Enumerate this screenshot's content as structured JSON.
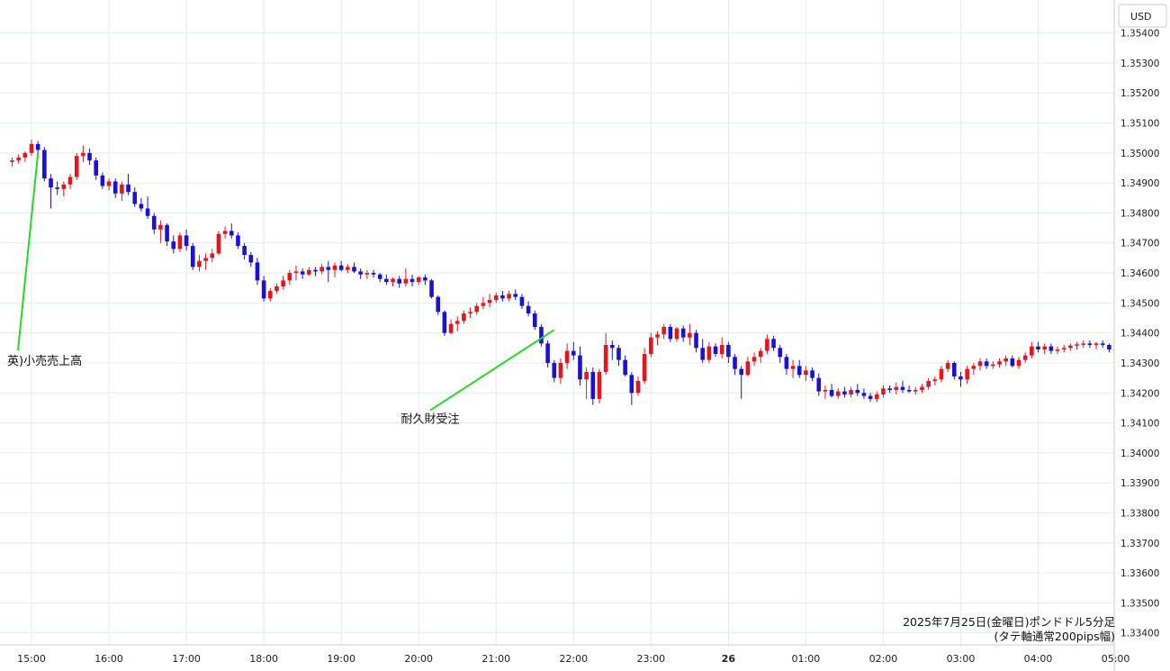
{
  "chart_data": {
    "type": "candlestick",
    "currency_label": "USD",
    "caption_line1": "2025年7月25日(金曜日)ポンドドル5分足",
    "caption_line2": "(タテ軸通常200pips幅)",
    "y_ticks": [
      "1.33400",
      "1.33500",
      "1.33600",
      "1.33700",
      "1.33800",
      "1.33900",
      "1.34000",
      "1.34100",
      "1.34200",
      "1.34300",
      "1.34400",
      "1.34500",
      "1.34600",
      "1.34700",
      "1.34800",
      "1.34900",
      "1.35000",
      "1.35100",
      "1.35200",
      "1.35300",
      "1.35400"
    ],
    "ylim": [
      1.3336,
      1.3551
    ],
    "x_ticks": [
      {
        "label": "15:00",
        "i": 3,
        "bold": false
      },
      {
        "label": "16:00",
        "i": 15,
        "bold": false
      },
      {
        "label": "17:00",
        "i": 27,
        "bold": false
      },
      {
        "label": "18:00",
        "i": 39,
        "bold": false
      },
      {
        "label": "19:00",
        "i": 51,
        "bold": false
      },
      {
        "label": "20:00",
        "i": 63,
        "bold": false
      },
      {
        "label": "21:00",
        "i": 75,
        "bold": false
      },
      {
        "label": "22:00",
        "i": 87,
        "bold": false
      },
      {
        "label": "23:00",
        "i": 99,
        "bold": false
      },
      {
        "label": "26",
        "i": 111,
        "bold": true
      },
      {
        "label": "01:00",
        "i": 123,
        "bold": false
      },
      {
        "label": "02:00",
        "i": 135,
        "bold": false
      },
      {
        "label": "03:00",
        "i": 147,
        "bold": false
      },
      {
        "label": "04:00",
        "i": 159,
        "bold": false
      },
      {
        "label": "05:00",
        "i": 171,
        "bold": false
      }
    ],
    "annotations": [
      {
        "text": "英)小売売上高",
        "i": 4,
        "price": 1.35,
        "label_price": 1.343
      },
      {
        "text": "耐久財受注",
        "i": 84,
        "price": 1.3441,
        "label_price": 1.341
      }
    ],
    "colors": {
      "up": "#e8141c",
      "down": "#1a10d8",
      "grid": "#e6ecef",
      "annotation_line": "#22dd22"
    },
    "candles": [
      [
        1.3497,
        1.34985,
        1.34955,
        1.34975
      ],
      [
        1.34975,
        1.34995,
        1.34965,
        1.34985
      ],
      [
        1.34985,
        1.35005,
        1.3497,
        1.35
      ],
      [
        1.35,
        1.35045,
        1.3499,
        1.3503
      ],
      [
        1.3503,
        1.3504,
        1.34995,
        1.3501
      ],
      [
        1.3501,
        1.3502,
        1.34905,
        1.34915
      ],
      [
        1.34915,
        1.3493,
        1.34815,
        1.34885
      ],
      [
        1.34885,
        1.34905,
        1.3486,
        1.3488
      ],
      [
        1.3488,
        1.34905,
        1.34855,
        1.34895
      ],
      [
        1.34895,
        1.3493,
        1.3488,
        1.3492
      ],
      [
        1.3492,
        1.35,
        1.3491,
        1.3499
      ],
      [
        1.3499,
        1.35025,
        1.3497,
        1.35
      ],
      [
        1.35,
        1.35015,
        1.3496,
        1.34975
      ],
      [
        1.34975,
        1.34985,
        1.3491,
        1.34925
      ],
      [
        1.34925,
        1.34935,
        1.3488,
        1.3489
      ],
      [
        1.3489,
        1.34915,
        1.34875,
        1.34905
      ],
      [
        1.34905,
        1.34915,
        1.3485,
        1.34865
      ],
      [
        1.34865,
        1.34905,
        1.3484,
        1.34895
      ],
      [
        1.34895,
        1.3493,
        1.3486,
        1.3487
      ],
      [
        1.3487,
        1.34885,
        1.3482,
        1.3483
      ],
      [
        1.3483,
        1.3485,
        1.34805,
        1.34815
      ],
      [
        1.34815,
        1.34855,
        1.3478,
        1.3479
      ],
      [
        1.3479,
        1.348,
        1.3473,
        1.34745
      ],
      [
        1.34745,
        1.34775,
        1.347,
        1.3476
      ],
      [
        1.3476,
        1.34765,
        1.3469,
        1.34705
      ],
      [
        1.34705,
        1.34725,
        1.34665,
        1.3468
      ],
      [
        1.3468,
        1.34735,
        1.3467,
        1.34725
      ],
      [
        1.34725,
        1.34745,
        1.34675,
        1.3469
      ],
      [
        1.3469,
        1.347,
        1.3461,
        1.3462
      ],
      [
        1.3462,
        1.3466,
        1.34605,
        1.3464
      ],
      [
        1.3464,
        1.34665,
        1.3461,
        1.3465
      ],
      [
        1.3465,
        1.3468,
        1.34635,
        1.34665
      ],
      [
        1.34665,
        1.3474,
        1.3466,
        1.3473
      ],
      [
        1.3473,
        1.34755,
        1.34715,
        1.3474
      ],
      [
        1.3474,
        1.34765,
        1.34715,
        1.34725
      ],
      [
        1.34725,
        1.34735,
        1.3468,
        1.3469
      ],
      [
        1.3469,
        1.347,
        1.34645,
        1.3466
      ],
      [
        1.3466,
        1.3467,
        1.3462,
        1.34635
      ],
      [
        1.34635,
        1.3465,
        1.3456,
        1.34575
      ],
      [
        1.34575,
        1.3459,
        1.34505,
        1.34515
      ],
      [
        1.34515,
        1.3455,
        1.34505,
        1.3454
      ],
      [
        1.3454,
        1.34565,
        1.3453,
        1.34555
      ],
      [
        1.34555,
        1.3459,
        1.34545,
        1.34575
      ],
      [
        1.34575,
        1.3461,
        1.3456,
        1.346
      ],
      [
        1.346,
        1.34625,
        1.34575,
        1.34605
      ],
      [
        1.34605,
        1.34615,
        1.3458,
        1.34595
      ],
      [
        1.34595,
        1.3462,
        1.3459,
        1.3461
      ],
      [
        1.3461,
        1.3462,
        1.3459,
        1.34605
      ],
      [
        1.34605,
        1.3463,
        1.34595,
        1.3462
      ],
      [
        1.3462,
        1.3464,
        1.3457,
        1.3461
      ],
      [
        1.3461,
        1.34635,
        1.34585,
        1.34625
      ],
      [
        1.34625,
        1.3464,
        1.34605,
        1.3461
      ],
      [
        1.3461,
        1.3463,
        1.346,
        1.3462
      ],
      [
        1.3462,
        1.34635,
        1.346,
        1.34605
      ],
      [
        1.34605,
        1.34615,
        1.3458,
        1.34595
      ],
      [
        1.34595,
        1.3461,
        1.3458,
        1.346
      ],
      [
        1.346,
        1.3461,
        1.34585,
        1.34595
      ],
      [
        1.34595,
        1.346,
        1.3457,
        1.3458
      ],
      [
        1.3458,
        1.34595,
        1.3456,
        1.3457
      ],
      [
        1.3457,
        1.34585,
        1.34555,
        1.3458
      ],
      [
        1.3458,
        1.3459,
        1.3455,
        1.34565
      ],
      [
        1.34565,
        1.34615,
        1.34555,
        1.3458
      ],
      [
        1.3458,
        1.34595,
        1.34555,
        1.3457
      ],
      [
        1.3457,
        1.3459,
        1.3456,
        1.34585
      ],
      [
        1.34585,
        1.34595,
        1.3456,
        1.34575
      ],
      [
        1.34575,
        1.3458,
        1.34515,
        1.3452
      ],
      [
        1.3452,
        1.34525,
        1.3446,
        1.3447
      ],
      [
        1.3447,
        1.34475,
        1.3439,
        1.344
      ],
      [
        1.344,
        1.34445,
        1.34395,
        1.3443
      ],
      [
        1.3443,
        1.34455,
        1.34405,
        1.3444
      ],
      [
        1.3444,
        1.34475,
        1.3443,
        1.34465
      ],
      [
        1.34465,
        1.34485,
        1.3445,
        1.3447
      ],
      [
        1.3447,
        1.345,
        1.3446,
        1.3449
      ],
      [
        1.3449,
        1.3452,
        1.3448,
        1.345
      ],
      [
        1.345,
        1.3453,
        1.34485,
        1.3451
      ],
      [
        1.3451,
        1.34535,
        1.345,
        1.34525
      ],
      [
        1.34525,
        1.3454,
        1.34505,
        1.34515
      ],
      [
        1.34515,
        1.3454,
        1.34505,
        1.3453
      ],
      [
        1.3453,
        1.34545,
        1.3451,
        1.3452
      ],
      [
        1.3452,
        1.3453,
        1.3448,
        1.3449
      ],
      [
        1.3449,
        1.34505,
        1.34455,
        1.34465
      ],
      [
        1.34465,
        1.34475,
        1.3441,
        1.3442
      ],
      [
        1.3442,
        1.3443,
        1.34355,
        1.34365
      ],
      [
        1.34365,
        1.34375,
        1.34285,
        1.343
      ],
      [
        1.343,
        1.3431,
        1.34235,
        1.3425
      ],
      [
        1.3425,
        1.34315,
        1.3423,
        1.343
      ],
      [
        1.343,
        1.34365,
        1.3428,
        1.3434
      ],
      [
        1.3434,
        1.3437,
        1.3431,
        1.34325
      ],
      [
        1.34325,
        1.34355,
        1.34225,
        1.34245
      ],
      [
        1.34245,
        1.34285,
        1.3418,
        1.3427
      ],
      [
        1.3427,
        1.34285,
        1.3416,
        1.3418
      ],
      [
        1.3418,
        1.3428,
        1.34165,
        1.3427
      ],
      [
        1.3427,
        1.344,
        1.3426,
        1.3436
      ],
      [
        1.3436,
        1.34375,
        1.3431,
        1.3435
      ],
      [
        1.3435,
        1.3436,
        1.3429,
        1.3431
      ],
      [
        1.3431,
        1.34325,
        1.34255,
        1.3426
      ],
      [
        1.3426,
        1.3427,
        1.3416,
        1.342
      ],
      [
        1.342,
        1.34255,
        1.3419,
        1.3424
      ],
      [
        1.3424,
        1.3435,
        1.3423,
        1.3433
      ],
      [
        1.3433,
        1.344,
        1.3432,
        1.34385
      ],
      [
        1.34385,
        1.34405,
        1.3436,
        1.34395
      ],
      [
        1.34395,
        1.3443,
        1.3438,
        1.3442
      ],
      [
        1.3442,
        1.3443,
        1.3437,
        1.3438
      ],
      [
        1.3438,
        1.3442,
        1.3437,
        1.34415
      ],
      [
        1.34415,
        1.34425,
        1.3437,
        1.34385
      ],
      [
        1.34385,
        1.3443,
        1.3436,
        1.344
      ],
      [
        1.344,
        1.3441,
        1.34335,
        1.3435
      ],
      [
        1.3435,
        1.3438,
        1.343,
        1.3431
      ],
      [
        1.3431,
        1.3437,
        1.343,
        1.34355
      ],
      [
        1.34355,
        1.34365,
        1.3432,
        1.3433
      ],
      [
        1.3433,
        1.34385,
        1.34315,
        1.3436
      ],
      [
        1.3436,
        1.3437,
        1.343,
        1.3432
      ],
      [
        1.3432,
        1.3433,
        1.3426,
        1.3428
      ],
      [
        1.3428,
        1.3429,
        1.3418,
        1.3426
      ],
      [
        1.3426,
        1.3432,
        1.34255,
        1.34305
      ],
      [
        1.34305,
        1.34335,
        1.3429,
        1.3432
      ],
      [
        1.3432,
        1.3435,
        1.343,
        1.3434
      ],
      [
        1.3434,
        1.34395,
        1.3433,
        1.3438
      ],
      [
        1.3438,
        1.3439,
        1.3434,
        1.3435
      ],
      [
        1.3435,
        1.3436,
        1.343,
        1.3432
      ],
      [
        1.3432,
        1.3433,
        1.3426,
        1.3428
      ],
      [
        1.3428,
        1.3431,
        1.3425,
        1.3429
      ],
      [
        1.3429,
        1.3431,
        1.3425,
        1.3426
      ],
      [
        1.3426,
        1.3429,
        1.3424,
        1.34275
      ],
      [
        1.34275,
        1.34285,
        1.3424,
        1.3425
      ],
      [
        1.3425,
        1.34265,
        1.3419,
        1.34205
      ],
      [
        1.34205,
        1.34225,
        1.3418,
        1.3421
      ],
      [
        1.3421,
        1.3423,
        1.34185,
        1.3419
      ],
      [
        1.3419,
        1.34215,
        1.3418,
        1.34205
      ],
      [
        1.34205,
        1.3422,
        1.34185,
        1.34195
      ],
      [
        1.34195,
        1.3422,
        1.34185,
        1.3421
      ],
      [
        1.3421,
        1.3423,
        1.3419,
        1.342
      ],
      [
        1.342,
        1.34215,
        1.3418,
        1.3419
      ],
      [
        1.3419,
        1.342,
        1.3417,
        1.3418
      ],
      [
        1.3418,
        1.34205,
        1.3417,
        1.34195
      ],
      [
        1.34195,
        1.34225,
        1.34185,
        1.34215
      ],
      [
        1.34215,
        1.34225,
        1.342,
        1.3421
      ],
      [
        1.3421,
        1.34235,
        1.34195,
        1.3422
      ],
      [
        1.3422,
        1.3424,
        1.342,
        1.3421
      ],
      [
        1.3421,
        1.34225,
        1.342,
        1.34205
      ],
      [
        1.34205,
        1.3422,
        1.34195,
        1.3421
      ],
      [
        1.3421,
        1.3423,
        1.342,
        1.3422
      ],
      [
        1.3422,
        1.3425,
        1.3421,
        1.3424
      ],
      [
        1.3424,
        1.34255,
        1.34225,
        1.34245
      ],
      [
        1.34245,
        1.3429,
        1.34235,
        1.3428
      ],
      [
        1.3428,
        1.3431,
        1.3427,
        1.343
      ],
      [
        1.343,
        1.34305,
        1.34245,
        1.34255
      ],
      [
        1.34255,
        1.3427,
        1.3422,
        1.34245
      ],
      [
        1.34245,
        1.3429,
        1.3423,
        1.3428
      ],
      [
        1.3428,
        1.343,
        1.3426,
        1.3429
      ],
      [
        1.3429,
        1.34315,
        1.34275,
        1.34305
      ],
      [
        1.34305,
        1.34315,
        1.3428,
        1.3429
      ],
      [
        1.3429,
        1.34305,
        1.3428,
        1.34295
      ],
      [
        1.34295,
        1.34315,
        1.34285,
        1.34305
      ],
      [
        1.34305,
        1.34325,
        1.3429,
        1.34315
      ],
      [
        1.34315,
        1.34325,
        1.34285,
        1.3429
      ],
      [
        1.3429,
        1.3432,
        1.3428,
        1.3431
      ],
      [
        1.3431,
        1.34335,
        1.343,
        1.34325
      ],
      [
        1.34325,
        1.3437,
        1.34315,
        1.34355
      ],
      [
        1.34355,
        1.3437,
        1.34335,
        1.34345
      ],
      [
        1.34345,
        1.34365,
        1.3433,
        1.34355
      ],
      [
        1.34355,
        1.34365,
        1.3433,
        1.3434
      ],
      [
        1.3434,
        1.34355,
        1.3433,
        1.34345
      ],
      [
        1.34345,
        1.3436,
        1.34335,
        1.3435
      ],
      [
        1.3435,
        1.34365,
        1.3434,
        1.34358
      ],
      [
        1.34358,
        1.3437,
        1.34345,
        1.34362
      ],
      [
        1.34362,
        1.34375,
        1.3435,
        1.34365
      ],
      [
        1.34365,
        1.34375,
        1.3435,
        1.3436
      ],
      [
        1.3436,
        1.3437,
        1.34345,
        1.34365
      ],
      [
        1.34365,
        1.34375,
        1.3435,
        1.3436
      ],
      [
        1.3436,
        1.34365,
        1.34335,
        1.34345
      ],
      [
        1.34345,
        1.34355,
        1.3433,
        1.3434
      ],
      [
        1.3434,
        1.3435,
        1.34325,
        1.3434
      ],
      [
        1.3434,
        1.34385,
        1.34335,
        1.34375
      ],
      [
        1.34375,
        1.34385,
        1.3432,
        1.3433
      ]
    ]
  }
}
